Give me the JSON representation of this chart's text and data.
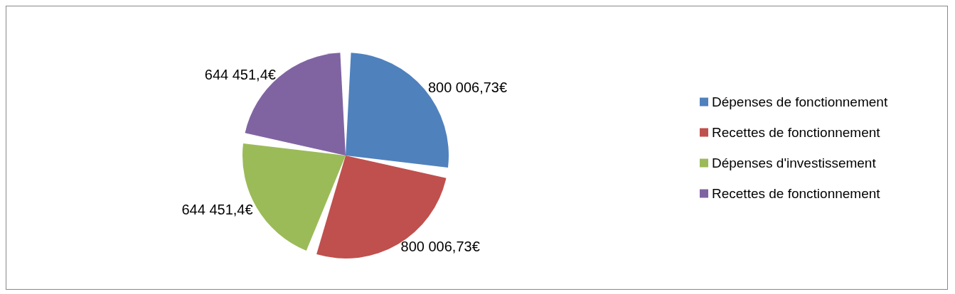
{
  "chart_data": {
    "type": "pie",
    "categories": [
      "Dépenses de fonctionnement",
      "Recettes de fonctionnement",
      "Dépenses d'investissement",
      "Recettes de fonctionnement"
    ],
    "values": [
      800006.73,
      800006.73,
      644451.4,
      644451.4
    ],
    "value_labels": [
      "800 006,73€",
      "800 006,73€",
      "644 451,4€",
      "644 451,4€"
    ],
    "colors": [
      "#4f81bd",
      "#c0504d",
      "#9bbb59",
      "#8064a2"
    ],
    "legend": "right"
  }
}
